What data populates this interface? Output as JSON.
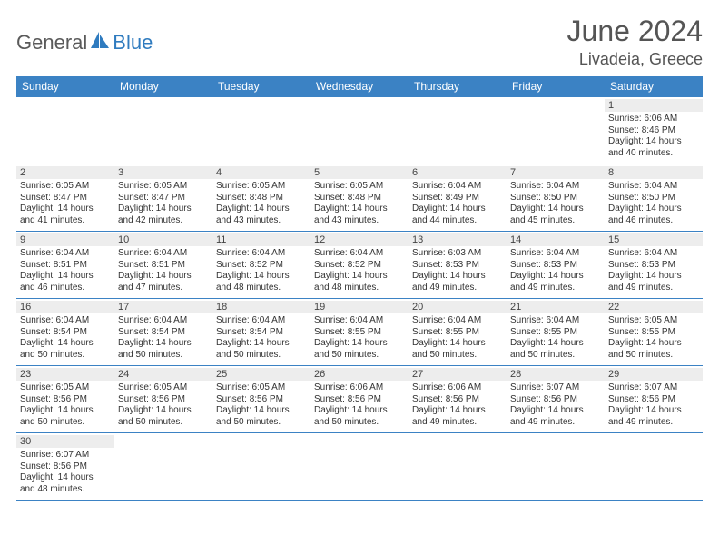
{
  "brand": {
    "part1": "General",
    "part2": "Blue"
  },
  "title": "June 2024",
  "location": "Livadeia, Greece",
  "header_bg": "#3b82c4",
  "header_fg": "#ffffff",
  "daynum_bg": "#ededed",
  "border_color": "#3b82c4",
  "weekdays": [
    "Sunday",
    "Monday",
    "Tuesday",
    "Wednesday",
    "Thursday",
    "Friday",
    "Saturday"
  ],
  "label_sunrise": "Sunrise:",
  "label_sunset": "Sunset:",
  "label_daylight": "Daylight:",
  "weeks": [
    [
      null,
      null,
      null,
      null,
      null,
      null,
      {
        "d": "1",
        "sr": "6:06 AM",
        "ss": "8:46 PM",
        "dl1": "14 hours",
        "dl2": "and 40 minutes."
      }
    ],
    [
      {
        "d": "2",
        "sr": "6:05 AM",
        "ss": "8:47 PM",
        "dl1": "14 hours",
        "dl2": "and 41 minutes."
      },
      {
        "d": "3",
        "sr": "6:05 AM",
        "ss": "8:47 PM",
        "dl1": "14 hours",
        "dl2": "and 42 minutes."
      },
      {
        "d": "4",
        "sr": "6:05 AM",
        "ss": "8:48 PM",
        "dl1": "14 hours",
        "dl2": "and 43 minutes."
      },
      {
        "d": "5",
        "sr": "6:05 AM",
        "ss": "8:48 PM",
        "dl1": "14 hours",
        "dl2": "and 43 minutes."
      },
      {
        "d": "6",
        "sr": "6:04 AM",
        "ss": "8:49 PM",
        "dl1": "14 hours",
        "dl2": "and 44 minutes."
      },
      {
        "d": "7",
        "sr": "6:04 AM",
        "ss": "8:50 PM",
        "dl1": "14 hours",
        "dl2": "and 45 minutes."
      },
      {
        "d": "8",
        "sr": "6:04 AM",
        "ss": "8:50 PM",
        "dl1": "14 hours",
        "dl2": "and 46 minutes."
      }
    ],
    [
      {
        "d": "9",
        "sr": "6:04 AM",
        "ss": "8:51 PM",
        "dl1": "14 hours",
        "dl2": "and 46 minutes."
      },
      {
        "d": "10",
        "sr": "6:04 AM",
        "ss": "8:51 PM",
        "dl1": "14 hours",
        "dl2": "and 47 minutes."
      },
      {
        "d": "11",
        "sr": "6:04 AM",
        "ss": "8:52 PM",
        "dl1": "14 hours",
        "dl2": "and 48 minutes."
      },
      {
        "d": "12",
        "sr": "6:04 AM",
        "ss": "8:52 PM",
        "dl1": "14 hours",
        "dl2": "and 48 minutes."
      },
      {
        "d": "13",
        "sr": "6:03 AM",
        "ss": "8:53 PM",
        "dl1": "14 hours",
        "dl2": "and 49 minutes."
      },
      {
        "d": "14",
        "sr": "6:04 AM",
        "ss": "8:53 PM",
        "dl1": "14 hours",
        "dl2": "and 49 minutes."
      },
      {
        "d": "15",
        "sr": "6:04 AM",
        "ss": "8:53 PM",
        "dl1": "14 hours",
        "dl2": "and 49 minutes."
      }
    ],
    [
      {
        "d": "16",
        "sr": "6:04 AM",
        "ss": "8:54 PM",
        "dl1": "14 hours",
        "dl2": "and 50 minutes."
      },
      {
        "d": "17",
        "sr": "6:04 AM",
        "ss": "8:54 PM",
        "dl1": "14 hours",
        "dl2": "and 50 minutes."
      },
      {
        "d": "18",
        "sr": "6:04 AM",
        "ss": "8:54 PM",
        "dl1": "14 hours",
        "dl2": "and 50 minutes."
      },
      {
        "d": "19",
        "sr": "6:04 AM",
        "ss": "8:55 PM",
        "dl1": "14 hours",
        "dl2": "and 50 minutes."
      },
      {
        "d": "20",
        "sr": "6:04 AM",
        "ss": "8:55 PM",
        "dl1": "14 hours",
        "dl2": "and 50 minutes."
      },
      {
        "d": "21",
        "sr": "6:04 AM",
        "ss": "8:55 PM",
        "dl1": "14 hours",
        "dl2": "and 50 minutes."
      },
      {
        "d": "22",
        "sr": "6:05 AM",
        "ss": "8:55 PM",
        "dl1": "14 hours",
        "dl2": "and 50 minutes."
      }
    ],
    [
      {
        "d": "23",
        "sr": "6:05 AM",
        "ss": "8:56 PM",
        "dl1": "14 hours",
        "dl2": "and 50 minutes."
      },
      {
        "d": "24",
        "sr": "6:05 AM",
        "ss": "8:56 PM",
        "dl1": "14 hours",
        "dl2": "and 50 minutes."
      },
      {
        "d": "25",
        "sr": "6:05 AM",
        "ss": "8:56 PM",
        "dl1": "14 hours",
        "dl2": "and 50 minutes."
      },
      {
        "d": "26",
        "sr": "6:06 AM",
        "ss": "8:56 PM",
        "dl1": "14 hours",
        "dl2": "and 50 minutes."
      },
      {
        "d": "27",
        "sr": "6:06 AM",
        "ss": "8:56 PM",
        "dl1": "14 hours",
        "dl2": "and 49 minutes."
      },
      {
        "d": "28",
        "sr": "6:07 AM",
        "ss": "8:56 PM",
        "dl1": "14 hours",
        "dl2": "and 49 minutes."
      },
      {
        "d": "29",
        "sr": "6:07 AM",
        "ss": "8:56 PM",
        "dl1": "14 hours",
        "dl2": "and 49 minutes."
      }
    ],
    [
      {
        "d": "30",
        "sr": "6:07 AM",
        "ss": "8:56 PM",
        "dl1": "14 hours",
        "dl2": "and 48 minutes."
      },
      null,
      null,
      null,
      null,
      null,
      null
    ]
  ]
}
